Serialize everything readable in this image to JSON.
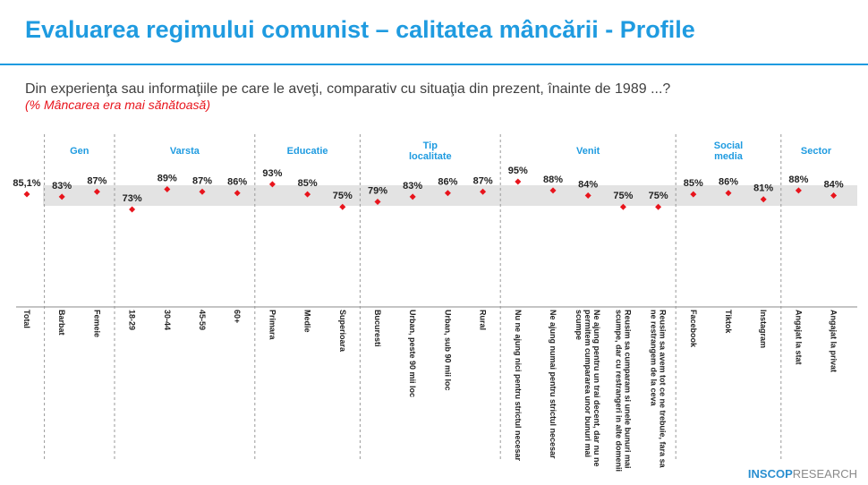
{
  "chart_data": {
    "type": "dot",
    "title": "Evaluarea regimului comunist – calitatea mâncării - Profile",
    "subtitle": "Din experienţa sau informaţiile pe care le aveţi, comparativ cu situaţia din prezent, înainte de 1989 ...?",
    "note": "(% Mâncarea era mai sănătoasă)",
    "color": "#e8141c",
    "groups": [
      {
        "name": null,
        "categories": [
          "Total"
        ],
        "values": [
          85.1
        ],
        "value_labels": [
          "85,1%"
        ]
      },
      {
        "name": "Gen",
        "categories": [
          "Barbat",
          "Femeie"
        ],
        "values": [
          83,
          87
        ],
        "value_labels": [
          "83%",
          "87%"
        ]
      },
      {
        "name": "Varsta",
        "categories": [
          "18-29",
          "30-44",
          "45-59",
          "60+"
        ],
        "values": [
          73,
          89,
          87,
          86
        ],
        "value_labels": [
          "73%",
          "89%",
          "87%",
          "86%"
        ]
      },
      {
        "name": "Educatie",
        "categories": [
          "Primara",
          "Medie",
          "Superioara"
        ],
        "values": [
          93,
          85,
          75
        ],
        "value_labels": [
          "93%",
          "85%",
          "75%"
        ]
      },
      {
        "name": "Tip localitate",
        "categories": [
          "Bucuresti",
          "Urban, peste 90 mii loc",
          "Urban, sub 90 mii loc",
          "Rural"
        ],
        "values": [
          79,
          83,
          86,
          87
        ],
        "value_labels": [
          "79%",
          "83%",
          "86%",
          "87%"
        ]
      },
      {
        "name": "Venit",
        "categories": [
          "Nu ne ajung nici pentru strictul necesar",
          "Ne ajung numai pentru strictul necesar",
          "Ne ajung pentru un trai decent, dar nu ne permitem cumpararea unor bunuri mai scumpe",
          "Reusim sa cumparam si unele bunuri mai scumpe, dar cu restrangeri in alte domenii",
          "Reusim sa avem tot ce ne trebuie, fara sa ne restrangem de la ceva"
        ],
        "values": [
          95,
          88,
          84,
          75,
          75
        ],
        "value_labels": [
          "95%",
          "88%",
          "84%",
          "75%",
          "75%"
        ]
      },
      {
        "name": "Social media",
        "categories": [
          "Facebook",
          "Tiktok",
          "Instagram"
        ],
        "values": [
          85,
          86,
          81
        ],
        "value_labels": [
          "85%",
          "86%",
          "81%"
        ]
      },
      {
        "name": "Sector",
        "categories": [
          "Angajat la stat",
          "Angajat la privat"
        ],
        "values": [
          88,
          84
        ],
        "value_labels": [
          "88%",
          "84%"
        ]
      }
    ],
    "logo": {
      "bold": "INSCOP",
      "rest": "RESEARCH"
    }
  }
}
